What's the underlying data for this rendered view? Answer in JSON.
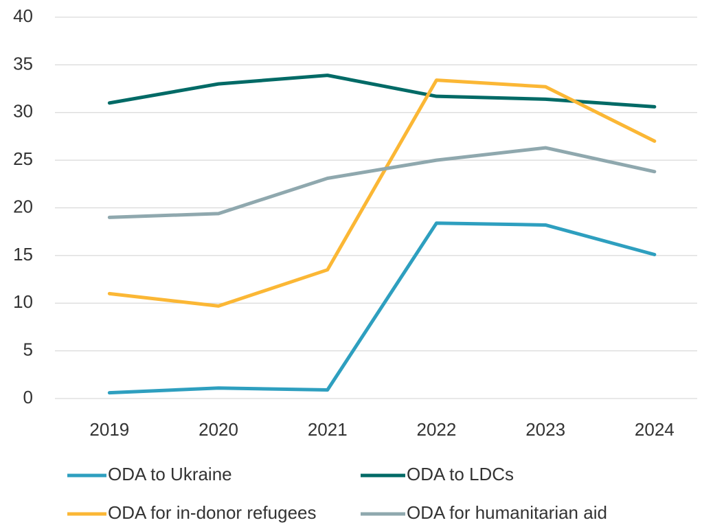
{
  "chart_data": {
    "type": "line",
    "categories": [
      "2019",
      "2020",
      "2021",
      "2022",
      "2023",
      "2024"
    ],
    "series": [
      {
        "name": "ODA to Ukraine",
        "color": "#2e9fbf",
        "values": [
          0.6,
          1.1,
          0.9,
          18.4,
          18.2,
          15.1
        ]
      },
      {
        "name": "ODA to LDCs",
        "color": "#006a66",
        "values": [
          31,
          33,
          33.9,
          31.7,
          31.4,
          30.6
        ]
      },
      {
        "name": "ODA for in-donor refugees",
        "color": "#fbb735",
        "values": [
          11,
          9.7,
          13.5,
          33.4,
          32.7,
          27
        ]
      },
      {
        "name": "ODA for humanitarian aid",
        "color": "#8fa8ae",
        "values": [
          19,
          19.4,
          23.1,
          25,
          26.3,
          23.8
        ]
      }
    ],
    "ylim": [
      0,
      40
    ],
    "yticks": [
      0,
      5,
      10,
      15,
      20,
      25,
      30,
      35,
      40
    ],
    "grid": true,
    "legend": "bottom"
  }
}
